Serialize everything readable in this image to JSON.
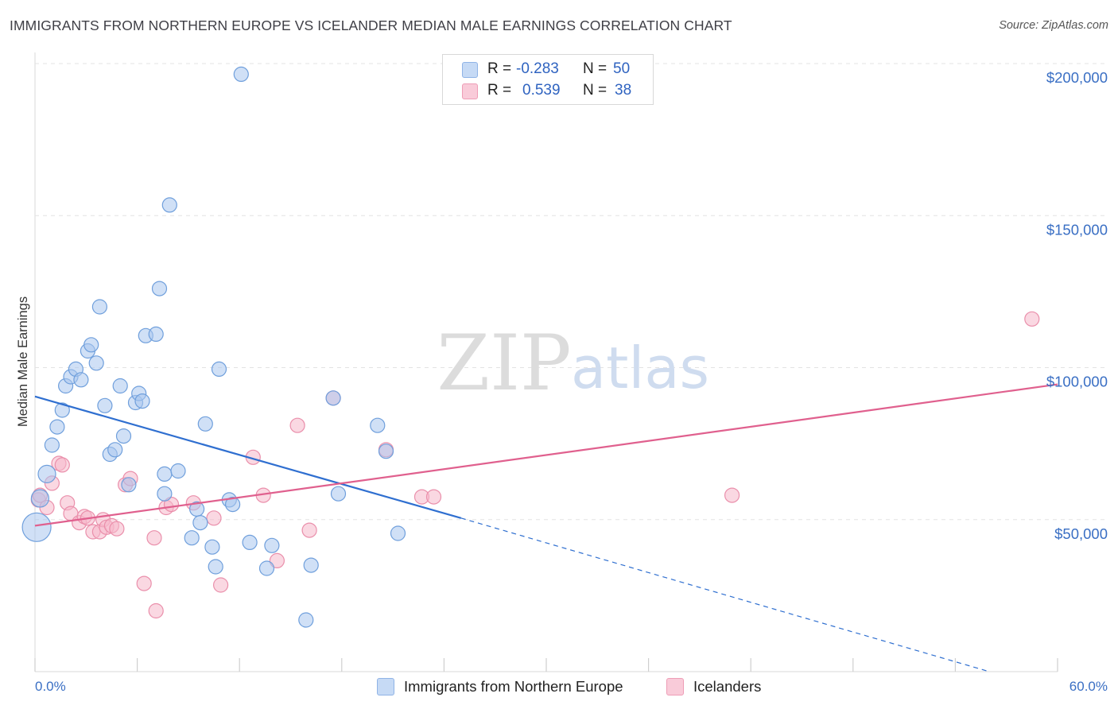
{
  "header": {
    "title": "IMMIGRANTS FROM NORTHERN EUROPE VS ICELANDER MEDIAN MALE EARNINGS CORRELATION CHART",
    "source": "Source: ZipAtlas.com"
  },
  "legend": {
    "rows": [
      {
        "r_label": "R =",
        "r_value": "-0.283",
        "n_label": "N =",
        "n_value": "50",
        "color": "#a9c6ef"
      },
      {
        "r_label": "R =",
        "r_value": "0.539",
        "n_label": "N =",
        "n_value": "38",
        "color": "#f5b8cb"
      }
    ]
  },
  "colors": {
    "blue_fill": "#a9c6ef",
    "blue_stroke": "#6f9fdc",
    "blue_line": "#2f6fd0",
    "pink_fill": "#f5b8cb",
    "pink_stroke": "#ea8fab",
    "pink_line": "#e0608e",
    "grid": "#e3e3e3",
    "axis_text": "#3a6fc4"
  },
  "watermark": {
    "zip": "ZIP",
    "atlas": "atlas"
  },
  "chart_data": {
    "type": "scatter",
    "title": "IMMIGRANTS FROM NORTHERN EUROPE VS ICELANDER MEDIAN MALE EARNINGS CORRELATION CHART",
    "xlabel": "",
    "ylabel": "Median Male Earnings",
    "xlim": [
      0,
      60
    ],
    "ylim": [
      0,
      205000
    ],
    "x_tick_labels": [
      "0.0%",
      "60.0%"
    ],
    "y_ticks": [
      {
        "value": 50000,
        "label": "$50,000"
      },
      {
        "value": 100000,
        "label": "$100,000"
      },
      {
        "value": 150000,
        "label": "$150,000"
      },
      {
        "value": 200000,
        "label": "$200,000"
      }
    ],
    "grid": true,
    "series": [
      {
        "name": "Immigrants from Northern Europe",
        "color": "#a9c6ef",
        "r": -0.283,
        "n": 50,
        "trend": {
          "x0": 0,
          "y0": 90500,
          "x1": 25,
          "y1": 50500,
          "dash_to_x": 56,
          "dash_to_y": 0
        },
        "points": [
          [
            0.1,
            47500,
            18
          ],
          [
            0.3,
            57000,
            11
          ],
          [
            0.7,
            65000,
            11
          ],
          [
            1.0,
            74500,
            9
          ],
          [
            1.3,
            80500,
            9
          ],
          [
            1.6,
            86000,
            9
          ],
          [
            1.8,
            94000,
            9
          ],
          [
            2.1,
            97000,
            9
          ],
          [
            2.4,
            99500,
            9
          ],
          [
            2.7,
            96000,
            9
          ],
          [
            3.1,
            105500,
            9
          ],
          [
            3.3,
            107500,
            9
          ],
          [
            3.6,
            101500,
            9
          ],
          [
            3.8,
            120000,
            9
          ],
          [
            4.1,
            87500,
            9
          ],
          [
            4.4,
            71500,
            9
          ],
          [
            4.7,
            73000,
            9
          ],
          [
            5.0,
            94000,
            9
          ],
          [
            5.2,
            77500,
            9
          ],
          [
            5.5,
            61500,
            9
          ],
          [
            5.9,
            88500,
            9
          ],
          [
            6.1,
            91500,
            9
          ],
          [
            6.3,
            89000,
            9
          ],
          [
            6.5,
            110500,
            9
          ],
          [
            7.1,
            111000,
            9
          ],
          [
            7.3,
            126000,
            9
          ],
          [
            7.6,
            58500,
            9
          ],
          [
            7.6,
            65000,
            9
          ],
          [
            7.9,
            153500,
            9
          ],
          [
            8.4,
            66000,
            9
          ],
          [
            9.2,
            44000,
            9
          ],
          [
            9.5,
            53500,
            9
          ],
          [
            9.7,
            49000,
            9
          ],
          [
            10.0,
            81500,
            9
          ],
          [
            10.4,
            41000,
            9
          ],
          [
            10.6,
            34500,
            9
          ],
          [
            10.8,
            99500,
            9
          ],
          [
            11.4,
            56500,
            9
          ],
          [
            11.6,
            55000,
            9
          ],
          [
            12.1,
            196500,
            9
          ],
          [
            12.6,
            42500,
            9
          ],
          [
            13.6,
            34000,
            9
          ],
          [
            13.9,
            41500,
            9
          ],
          [
            15.9,
            17000,
            9
          ],
          [
            16.2,
            35000,
            9
          ],
          [
            17.5,
            90000,
            9
          ],
          [
            17.8,
            58500,
            9
          ],
          [
            20.1,
            81000,
            9
          ],
          [
            20.6,
            72500,
            9
          ],
          [
            21.3,
            45500,
            9
          ]
        ]
      },
      {
        "name": "Icelanders",
        "color": "#f5b8cb",
        "r": 0.539,
        "n": 38,
        "trend": {
          "x0": 0,
          "y0": 48000,
          "x1": 60,
          "y1": 94500
        },
        "points": [
          [
            0.2,
            56500,
            9
          ],
          [
            0.3,
            58000,
            9
          ],
          [
            0.7,
            54000,
            9
          ],
          [
            1.0,
            62000,
            9
          ],
          [
            1.4,
            68500,
            9
          ],
          [
            1.6,
            68000,
            9
          ],
          [
            1.9,
            55500,
            9
          ],
          [
            2.1,
            52000,
            9
          ],
          [
            2.6,
            49000,
            9
          ],
          [
            2.9,
            51000,
            9
          ],
          [
            3.1,
            50500,
            9
          ],
          [
            3.4,
            46000,
            9
          ],
          [
            3.8,
            46000,
            9
          ],
          [
            4.0,
            50000,
            9
          ],
          [
            4.2,
            47500,
            9
          ],
          [
            4.5,
            48000,
            9
          ],
          [
            4.8,
            47000,
            9
          ],
          [
            5.3,
            61500,
            9
          ],
          [
            5.6,
            63500,
            9
          ],
          [
            6.4,
            29000,
            9
          ],
          [
            7.0,
            44000,
            9
          ],
          [
            7.1,
            20000,
            9
          ],
          [
            7.7,
            54000,
            9
          ],
          [
            8.0,
            55000,
            9
          ],
          [
            9.3,
            55500,
            9
          ],
          [
            10.5,
            50500,
            9
          ],
          [
            10.9,
            28500,
            9
          ],
          [
            12.8,
            70500,
            9
          ],
          [
            13.4,
            58000,
            9
          ],
          [
            14.2,
            36500,
            9
          ],
          [
            15.4,
            81000,
            9
          ],
          [
            16.1,
            46500,
            9
          ],
          [
            17.5,
            90000,
            9
          ],
          [
            20.6,
            73000,
            9
          ],
          [
            22.7,
            57500,
            9
          ],
          [
            23.4,
            57500,
            9
          ],
          [
            40.9,
            58000,
            9
          ],
          [
            58.5,
            116000,
            9
          ]
        ]
      }
    ]
  }
}
